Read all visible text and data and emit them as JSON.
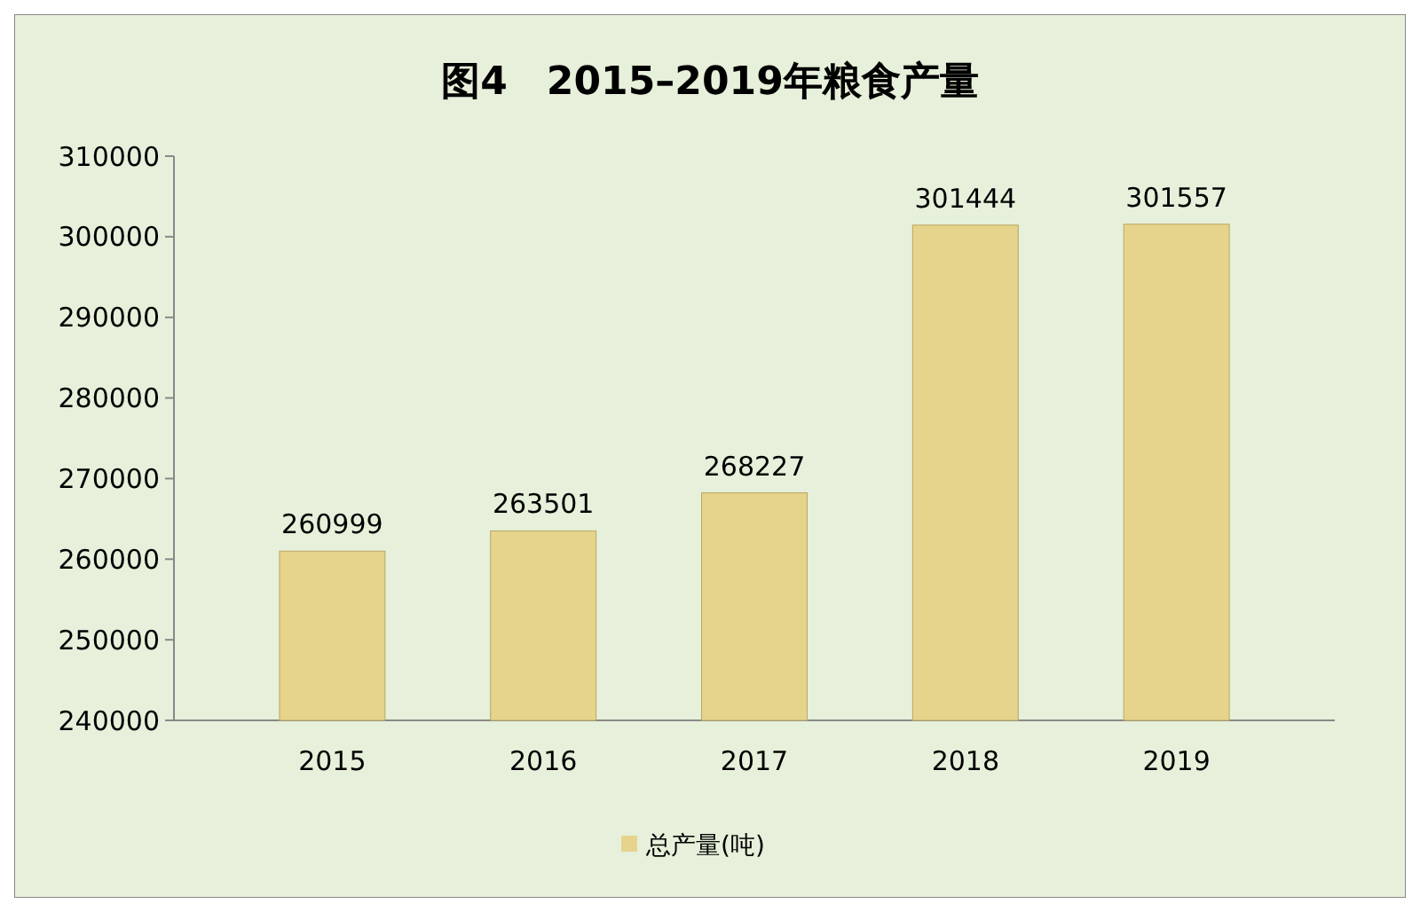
{
  "chart_data": {
    "type": "bar",
    "title": "图4　2015–2019年粮食产量",
    "categories": [
      "2015",
      "2016",
      "2017",
      "2018",
      "2019"
    ],
    "series": [
      {
        "name": "总产量(吨)",
        "color": "#e6d48c",
        "values": [
          260999,
          263501,
          268227,
          301444,
          301557
        ]
      }
    ],
    "ylim": [
      240000,
      310000
    ],
    "yticks": [
      240000,
      250000,
      260000,
      270000,
      280000,
      290000,
      300000,
      310000
    ],
    "data_labels": true,
    "legend": "bottom",
    "grid": false
  }
}
